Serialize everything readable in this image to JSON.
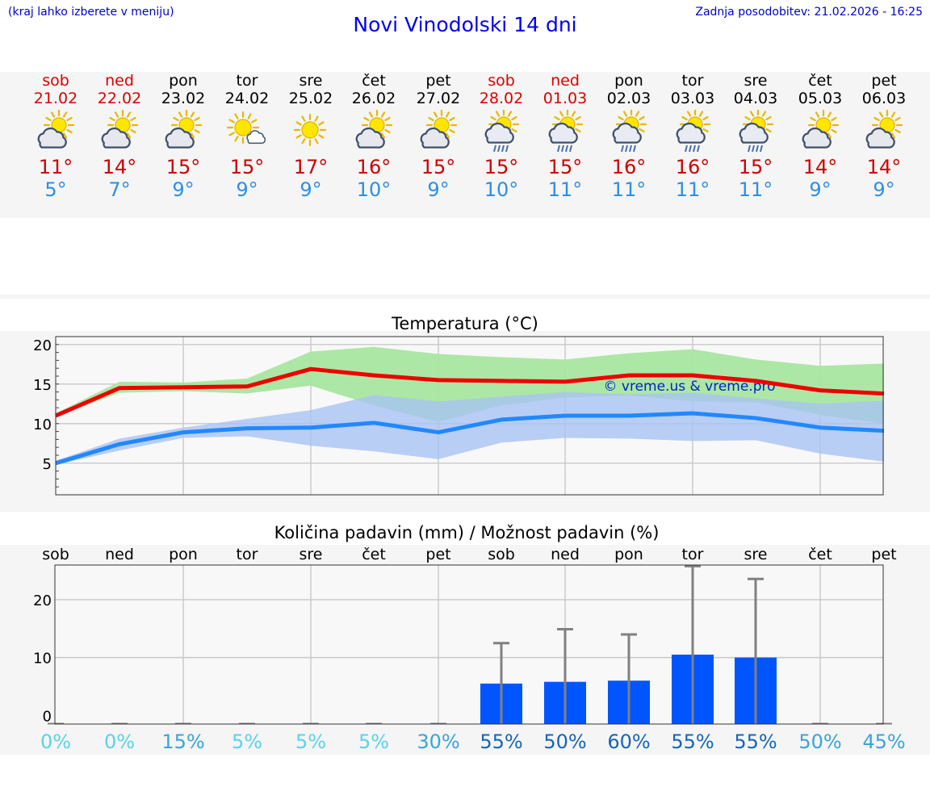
{
  "header": {
    "note": "(kraj lahko izberete v meniju)",
    "title": "Novi Vinodolski 14 dni",
    "updated": "Zadnja posodobitev: 21.02.2026 - 16:25"
  },
  "days": [
    {
      "name": "sob",
      "date": "21.02",
      "tmax": "11°",
      "tmin": "5°",
      "icon": "partly-cloudy-icon",
      "weekend": true
    },
    {
      "name": "ned",
      "date": "22.02",
      "tmax": "14°",
      "tmin": "7°",
      "icon": "partly-cloudy-icon",
      "weekend": true
    },
    {
      "name": "pon",
      "date": "23.02",
      "tmax": "15°",
      "tmin": "9°",
      "icon": "partly-cloudy-icon",
      "weekend": false
    },
    {
      "name": "tor",
      "date": "24.02",
      "tmax": "15°",
      "tmin": "9°",
      "icon": "mostly-sunny-icon",
      "weekend": false
    },
    {
      "name": "sre",
      "date": "25.02",
      "tmax": "17°",
      "tmin": "9°",
      "icon": "sunny-icon",
      "weekend": false
    },
    {
      "name": "čet",
      "date": "26.02",
      "tmax": "16°",
      "tmin": "10°",
      "icon": "partly-cloudy-icon",
      "weekend": false
    },
    {
      "name": "pet",
      "date": "27.02",
      "tmax": "15°",
      "tmin": "9°",
      "icon": "partly-cloudy-icon",
      "weekend": false
    },
    {
      "name": "sob",
      "date": "28.02",
      "tmax": "15°",
      "tmin": "10°",
      "icon": "sun-cloud-rain-icon",
      "weekend": true
    },
    {
      "name": "ned",
      "date": "01.03",
      "tmax": "15°",
      "tmin": "11°",
      "icon": "sun-cloud-rain-icon",
      "weekend": true
    },
    {
      "name": "pon",
      "date": "02.03",
      "tmax": "16°",
      "tmin": "11°",
      "icon": "sun-cloud-rain-icon",
      "weekend": false
    },
    {
      "name": "tor",
      "date": "03.03",
      "tmax": "16°",
      "tmin": "11°",
      "icon": "sun-cloud-rain-icon",
      "weekend": false
    },
    {
      "name": "sre",
      "date": "04.03",
      "tmax": "15°",
      "tmin": "11°",
      "icon": "sun-cloud-rain-icon",
      "weekend": false
    },
    {
      "name": "čet",
      "date": "05.03",
      "tmax": "14°",
      "tmin": "9°",
      "icon": "partly-cloudy-icon",
      "weekend": false
    },
    {
      "name": "pet",
      "date": "06.03",
      "tmax": "14°",
      "tmin": "9°",
      "icon": "partly-cloudy-icon",
      "weekend": false
    }
  ],
  "colors": {
    "weekend": "#dd0000",
    "tmax": "#cc0000",
    "tmin": "#2b8fe6",
    "maxLine": "#ee0000",
    "minLine": "#2288ff",
    "maxBand": "#a8e6a0",
    "minBand": "#a9c3f2",
    "bar": "#0055ff",
    "errorBar": "#808080"
  },
  "chart_data": [
    {
      "type": "line",
      "title": "Temperatura (°C)",
      "watermark": "© vreme.us & vreme.pro",
      "xlabel": "",
      "ylabel": "",
      "ylim": [
        1,
        21
      ],
      "yticks": [
        5,
        10,
        15,
        20
      ],
      "grid": true,
      "series": [
        {
          "name": "max",
          "values": [
            11,
            14.5,
            14.6,
            14.7,
            16.9,
            16.1,
            15.5,
            15.4,
            15.3,
            16.1,
            16.1,
            15.4,
            14.2,
            13.8
          ]
        },
        {
          "name": "min",
          "values": [
            5,
            7.4,
            8.9,
            9.4,
            9.5,
            10.1,
            8.9,
            10.5,
            11,
            11,
            11.3,
            10.7,
            9.5,
            9.1
          ]
        }
      ],
      "bands": [
        {
          "name": "max-range",
          "lower": [
            10.9,
            13.9,
            14.1,
            13.8,
            14.8,
            12.3,
            10.2,
            12.3,
            13.3,
            13.6,
            12.8,
            12.7,
            11.1,
            10
          ],
          "upper": [
            11.3,
            15.3,
            15.2,
            15.7,
            19.1,
            19.7,
            18.8,
            18.4,
            18.1,
            18.9,
            19.4,
            18.1,
            17.3,
            17.6
          ]
        },
        {
          "name": "min-range",
          "lower": [
            4.8,
            6.6,
            8.2,
            8.4,
            7.2,
            6.5,
            5.5,
            7.6,
            8.2,
            8.1,
            7.8,
            7.9,
            6.2,
            5.2
          ],
          "upper": [
            5.3,
            8.1,
            9.5,
            10.6,
            11.7,
            13.6,
            12.8,
            13.4,
            14,
            13.7,
            13.9,
            13.2,
            12.5,
            12.9
          ]
        }
      ]
    },
    {
      "type": "bar",
      "title": "Količina padavin (mm) / Možnost padavin (%)",
      "xlabel": "",
      "ylabel": "",
      "ylim": [
        -1.5,
        26
      ],
      "yticks": [
        0,
        10,
        20
      ],
      "grid": true,
      "categories": [
        "sob",
        "ned",
        "pon",
        "tor",
        "sre",
        "čet",
        "pet",
        "sob",
        "ned",
        "pon",
        "tor",
        "sre",
        "čet",
        "pet"
      ],
      "values": [
        0,
        0,
        0,
        0,
        0,
        0,
        0,
        5.5,
        5.8,
        6,
        10.5,
        10,
        0,
        0
      ],
      "error_max": [
        0,
        0,
        0,
        0,
        0,
        0,
        0,
        12.5,
        14.9,
        14,
        25.8,
        23.6,
        0,
        0
      ],
      "probability": [
        "0%",
        "0%",
        "15%",
        "5%",
        "5%",
        "5%",
        "30%",
        "55%",
        "50%",
        "60%",
        "55%",
        "55%",
        "50%",
        "45%"
      ],
      "probability_colors": [
        "#58d4e8",
        "#58d4e8",
        "#38a4dc",
        "#58d4e8",
        "#58d4e8",
        "#58d4e8",
        "#38a4dc",
        "#1565b8",
        "#1565b8",
        "#1565b8",
        "#1565b8",
        "#1565b8",
        "#38a4dc",
        "#38a4dc"
      ]
    }
  ]
}
